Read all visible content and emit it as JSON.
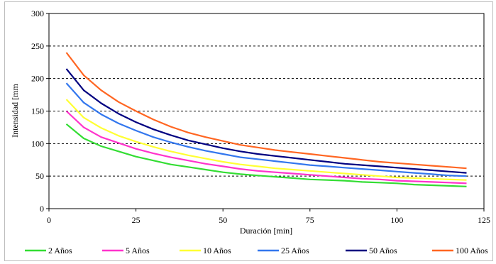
{
  "chart_data": {
    "type": "line",
    "title": "",
    "xlabel": "Duración [min]",
    "ylabel": "Intensidad [mm",
    "xlim": [
      0,
      125
    ],
    "ylim": [
      0,
      300
    ],
    "xticks": [
      0,
      25,
      50,
      75,
      100,
      125
    ],
    "yticks": [
      0,
      50,
      100,
      150,
      200,
      250,
      300
    ],
    "grid": "horizontal dashed",
    "legend_position": "bottom",
    "x": [
      5,
      10,
      15,
      20,
      25,
      30,
      35,
      40,
      45,
      50,
      55,
      60,
      65,
      70,
      75,
      80,
      85,
      90,
      95,
      100,
      105,
      110,
      115,
      120
    ],
    "series": [
      {
        "name": "2 Años",
        "color": "#33dd33",
        "values": [
          130,
          108,
          96,
          88,
          80,
          74,
          68,
          64,
          60,
          56,
          53,
          51,
          49,
          47,
          45,
          44,
          43,
          41,
          40,
          39,
          37,
          36,
          35,
          34
        ]
      },
      {
        "name": "5 Años",
        "color": "#ff33cc",
        "values": [
          150,
          125,
          110,
          101,
          92,
          85,
          79,
          74,
          69,
          65,
          61,
          58,
          56,
          54,
          52,
          50,
          48,
          46,
          45,
          43,
          42,
          41,
          40,
          39
        ]
      },
      {
        "name": "10 Años",
        "color": "#ffff33",
        "values": [
          168,
          140,
          124,
          112,
          103,
          95,
          88,
          82,
          77,
          72,
          68,
          65,
          62,
          60,
          58,
          56,
          54,
          52,
          50,
          48,
          47,
          46,
          45,
          44
        ]
      },
      {
        "name": "25 Años",
        "color": "#3377ee",
        "values": [
          193,
          163,
          145,
          131,
          120,
          110,
          102,
          95,
          89,
          84,
          79,
          76,
          73,
          70,
          67,
          65,
          63,
          61,
          59,
          57,
          55,
          53,
          51,
          50
        ]
      },
      {
        "name": "50 Años",
        "color": "#000080",
        "values": [
          215,
          182,
          162,
          146,
          133,
          122,
          113,
          105,
          99,
          93,
          88,
          84,
          81,
          78,
          75,
          72,
          69,
          67,
          65,
          63,
          61,
          59,
          57,
          55
        ]
      },
      {
        "name": "100 Años",
        "color": "#ff6622",
        "values": [
          240,
          205,
          182,
          164,
          150,
          137,
          126,
          117,
          110,
          104,
          98,
          94,
          90,
          87,
          84,
          81,
          78,
          75,
          72,
          70,
          68,
          66,
          64,
          62
        ]
      }
    ]
  }
}
